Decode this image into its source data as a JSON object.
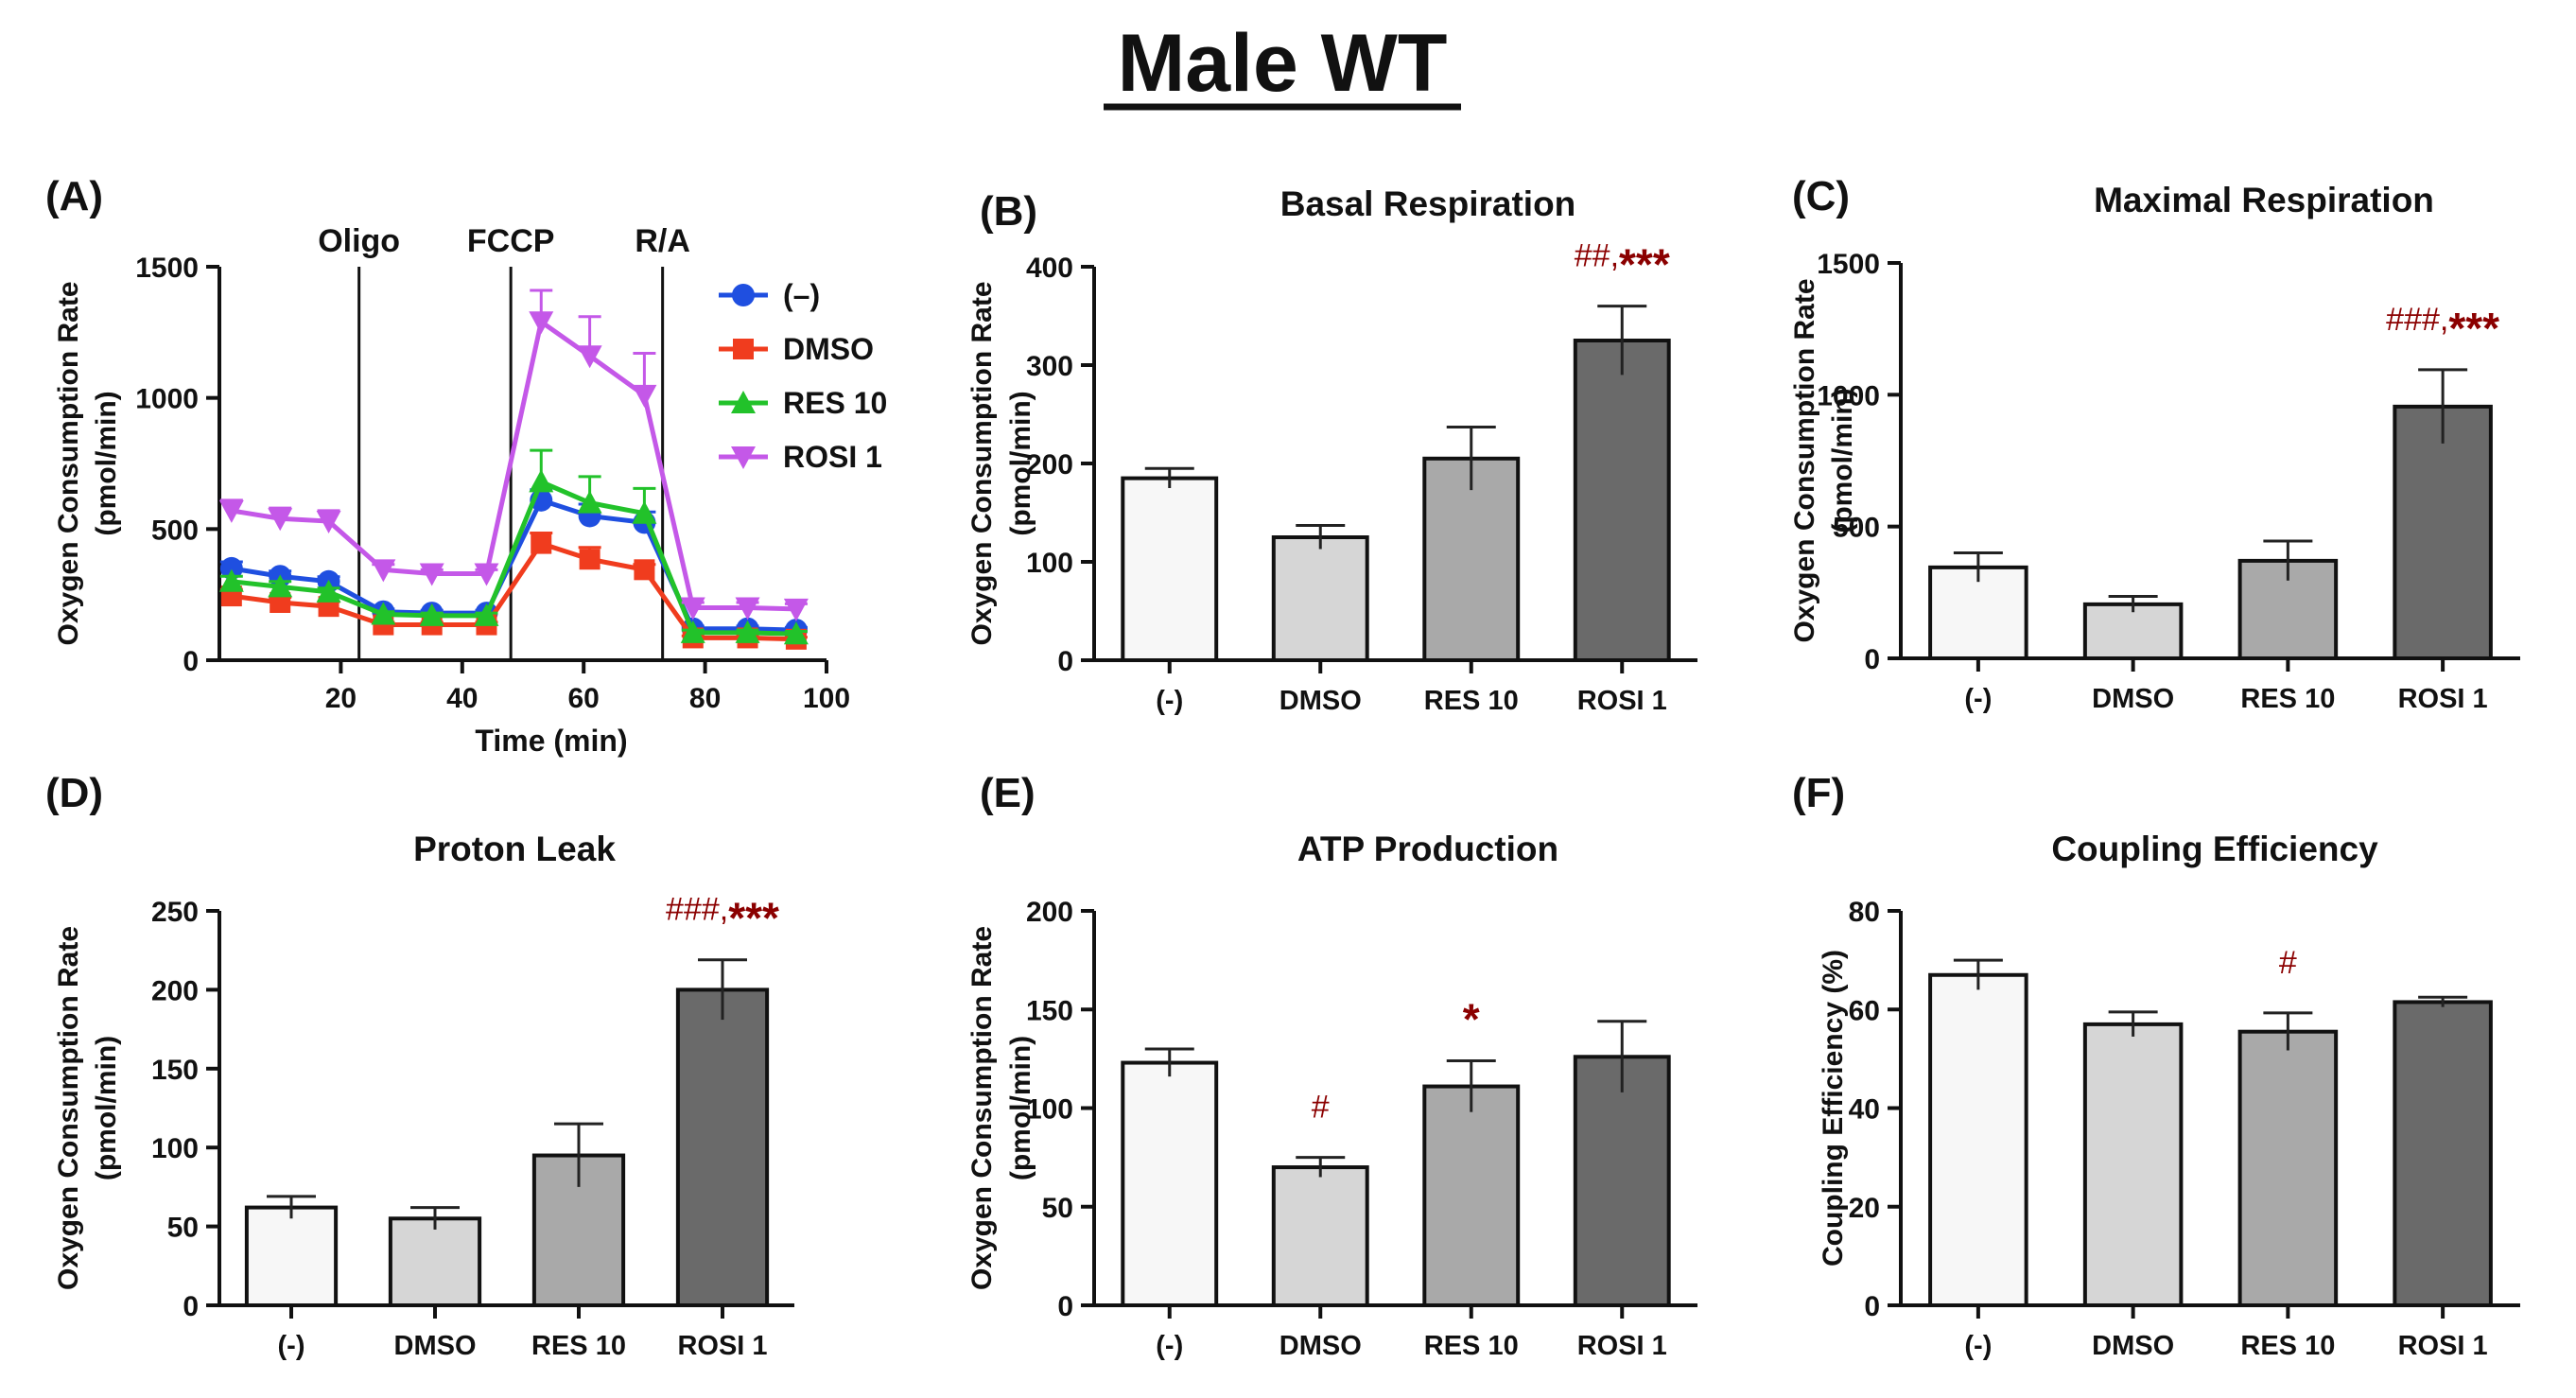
{
  "figure_title": "Male WT",
  "colors": {
    "axis": "#111111",
    "significance": "#8b0000",
    "bar_fills": [
      "#f7f7f7",
      "#d6d6d6",
      "#a9a9a9",
      "#6a6a6a"
    ],
    "series": [
      "#1f4fe0",
      "#f03c1e",
      "#22c22a",
      "#c458e8"
    ]
  },
  "chart_data": [
    {
      "id": "A",
      "panel_label": "(A)",
      "type": "line",
      "title": "",
      "xlabel": "Time (min)",
      "ylabel": "Oxygen Consumption Rate",
      "ylabel_unit": "(pmol/min)",
      "xlim": [
        0,
        100
      ],
      "ylim": [
        0,
        1500
      ],
      "xticks": [
        "20",
        "40",
        "60",
        "80",
        "100"
      ],
      "yticks": [
        "0",
        "500",
        "1000",
        "1500"
      ],
      "x": [
        2,
        10,
        18,
        27,
        35,
        44,
        53,
        61,
        70,
        78,
        87,
        95
      ],
      "events": [
        {
          "label": "Oligo",
          "x": 23
        },
        {
          "label": "FCCP",
          "x": 48
        },
        {
          "label": "R/A",
          "x": 73
        }
      ],
      "series": [
        {
          "name": "(–)",
          "marker": "circle",
          "values": [
            350,
            320,
            300,
            185,
            180,
            180,
            610,
            550,
            525,
            120,
            120,
            115
          ],
          "errors": [
            25,
            20,
            18,
            10,
            10,
            10,
            40,
            45,
            40,
            10,
            10,
            10
          ]
        },
        {
          "name": "DMSO",
          "marker": "square",
          "values": [
            245,
            220,
            205,
            135,
            135,
            135,
            445,
            385,
            345,
            85,
            85,
            80
          ],
          "errors": [
            25,
            20,
            18,
            10,
            10,
            10,
            40,
            45,
            20,
            8,
            8,
            8
          ]
        },
        {
          "name": "RES 10",
          "marker": "triangle-up",
          "values": [
            300,
            280,
            260,
            175,
            170,
            170,
            680,
            600,
            560,
            105,
            105,
            100
          ],
          "errors": [
            20,
            20,
            15,
            10,
            10,
            10,
            120,
            100,
            95,
            10,
            10,
            10
          ]
        },
        {
          "name": "ROSI 1",
          "marker": "triangle-down",
          "values": [
            570,
            540,
            530,
            345,
            330,
            330,
            1290,
            1160,
            1010,
            200,
            200,
            195
          ],
          "errors": [
            40,
            40,
            40,
            20,
            15,
            15,
            120,
            150,
            160,
            20,
            20,
            20
          ]
        }
      ]
    },
    {
      "id": "B",
      "panel_label": "(B)",
      "type": "bar",
      "title": "Basal Respiration",
      "ylabel": "Oxygen Consumption Rate",
      "ylabel_unit": "(pmol/min)",
      "categories": [
        "(-)",
        "DMSO",
        "RES 10",
        "ROSI 1"
      ],
      "values": [
        185,
        125,
        205,
        325
      ],
      "errors": [
        10,
        12,
        32,
        35
      ],
      "ylim": [
        0,
        400
      ],
      "yticks": [
        "0",
        "100",
        "200",
        "300",
        "400"
      ],
      "annotations": [
        {
          "index": 3,
          "hash": "##,",
          "stars": "***"
        }
      ]
    },
    {
      "id": "C",
      "panel_label": "(C)",
      "type": "bar",
      "title": "Maximal Respiration",
      "ylabel": "Oxygen Consumption Rate",
      "ylabel_unit": "(pmol/min)",
      "categories": [
        "(-)",
        "DMSO",
        "RES 10",
        "ROSI 1"
      ],
      "values": [
        345,
        205,
        370,
        955
      ],
      "errors": [
        55,
        30,
        75,
        140
      ],
      "ylim": [
        0,
        1500
      ],
      "yticks": [
        "0",
        "500",
        "1000",
        "1500"
      ],
      "annotations": [
        {
          "index": 3,
          "hash": "###,",
          "stars": "***"
        }
      ]
    },
    {
      "id": "D",
      "panel_label": "(D)",
      "type": "bar",
      "title": "Proton Leak",
      "ylabel": "Oxygen Consumption Rate",
      "ylabel_unit": "(pmol/min)",
      "categories": [
        "(-)",
        "DMSO",
        "RES 10",
        "ROSI 1"
      ],
      "values": [
        62,
        55,
        95,
        200
      ],
      "errors": [
        7,
        7,
        20,
        19
      ],
      "ylim": [
        0,
        250
      ],
      "yticks": [
        "0",
        "50",
        "100",
        "150",
        "200",
        "250"
      ],
      "annotations": [
        {
          "index": 3,
          "hash": "###,",
          "stars": "***"
        }
      ]
    },
    {
      "id": "E",
      "panel_label": "(E)",
      "type": "bar",
      "title": "ATP Production",
      "ylabel": "Oxygen Consumption Rate",
      "ylabel_unit": "(pmol/min)",
      "categories": [
        "(-)",
        "DMSO",
        "RES 10",
        "ROSI 1"
      ],
      "values": [
        123,
        70,
        111,
        126
      ],
      "errors": [
        7,
        5,
        13,
        18
      ],
      "ylim": [
        0,
        200
      ],
      "yticks": [
        "0",
        "50",
        "100",
        "150",
        "200"
      ],
      "annotations": [
        {
          "index": 1,
          "hash": "#",
          "stars": ""
        },
        {
          "index": 2,
          "hash": "",
          "stars": "*"
        }
      ]
    },
    {
      "id": "F",
      "panel_label": "(F)",
      "type": "bar",
      "title": "Coupling Efficiency",
      "ylabel": "Coupling Efficiency (%)",
      "ylabel_unit": "",
      "categories": [
        "(-)",
        "DMSO",
        "RES 10",
        "ROSI 1"
      ],
      "values": [
        67,
        57,
        55.5,
        61.5
      ],
      "errors": [
        3,
        2.5,
        3.8,
        1
      ],
      "ylim": [
        0,
        80
      ],
      "yticks": [
        "0",
        "20",
        "40",
        "60",
        "80"
      ],
      "annotations": [
        {
          "index": 2,
          "hash": "#",
          "stars": ""
        }
      ]
    }
  ]
}
